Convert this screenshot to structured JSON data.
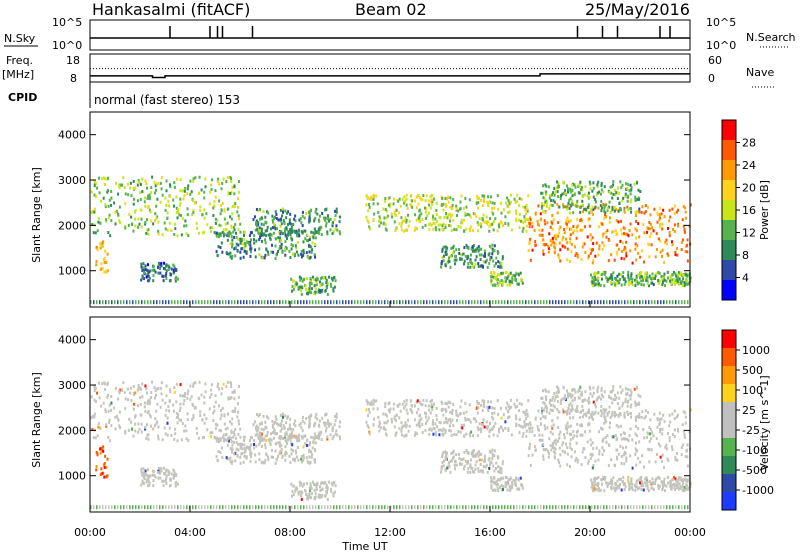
{
  "header": {
    "station": "Hankasalmi (fitACF)",
    "beam": "Beam 02",
    "date": "25/May/2016"
  },
  "top_panels": {
    "nsky_label": "N.Sky",
    "nsearch_label": "N.Search",
    "nsky_ticks": [
      "10^5",
      "10^0"
    ],
    "nsearch_ticks": [
      "10^5",
      "10^0"
    ],
    "freq_label_1": "Freq.",
    "freq_label_2": "[MHz]",
    "freq_ticks": [
      "18",
      "8"
    ],
    "nave_label": "Nave",
    "nave_ticks": [
      "60",
      "0"
    ],
    "cpid_label": "CPID",
    "cpid_text": "normal (fast stereo) 153"
  },
  "colors": {
    "power_scale": [
      "#0000ff",
      "#2d4aa8",
      "#2e8b57",
      "#55b24f",
      "#c8e619",
      "#ffd21e",
      "#ff9a00",
      "#ff5a00",
      "#ff0000"
    ],
    "velocity_scale": [
      "#ff0000",
      "#ff5a00",
      "#ff9a00",
      "#ffd21e",
      "#c0c0c0",
      "#c0c0c0",
      "#55b24f",
      "#2e8b57",
      "#2d4aa8",
      "#1e3cff"
    ],
    "gray_scatter": "#c4c4bc"
  },
  "chart_data": [
    {
      "type": "heatmap",
      "name": "power",
      "ylabel": "Slant Range [km]",
      "yticks": [
        "4000",
        "3000",
        "2000",
        "1000"
      ],
      "ylim": [
        200,
        4500
      ],
      "colorbar_label": "Power [dB]",
      "colorbar_ticks": [
        "28",
        "24",
        "20",
        "16",
        "12",
        "8",
        "4"
      ],
      "colorbar_range": [
        0,
        32
      ],
      "bands": [
        {
          "t": [
            0.0,
            6.0
          ],
          "r": [
            1800,
            3100
          ],
          "level": 14
        },
        {
          "t": [
            0.2,
            0.7
          ],
          "r": [
            1000,
            1700
          ],
          "level": 22
        },
        {
          "t": [
            2.0,
            3.5
          ],
          "r": [
            800,
            1200
          ],
          "level": 8
        },
        {
          "t": [
            5.0,
            9.0
          ],
          "r": [
            1300,
            1900
          ],
          "level": 10
        },
        {
          "t": [
            6.5,
            10.0
          ],
          "r": [
            1800,
            2400
          ],
          "level": 10
        },
        {
          "t": [
            8.0,
            9.8
          ],
          "r": [
            500,
            900
          ],
          "level": 12
        },
        {
          "t": [
            11.0,
            17.5
          ],
          "r": [
            1900,
            2700
          ],
          "level": 16
        },
        {
          "t": [
            14.0,
            16.5
          ],
          "r": [
            1100,
            1600
          ],
          "level": 10
        },
        {
          "t": [
            16.0,
            17.3
          ],
          "r": [
            700,
            1000
          ],
          "level": 14
        },
        {
          "t": [
            17.5,
            24.0
          ],
          "r": [
            1200,
            2500
          ],
          "level": 24
        },
        {
          "t": [
            18.0,
            22.0
          ],
          "r": [
            2300,
            3000
          ],
          "level": 12
        },
        {
          "t": [
            20.0,
            24.0
          ],
          "r": [
            700,
            1000
          ],
          "level": 12
        }
      ]
    },
    {
      "type": "heatmap",
      "name": "velocity",
      "ylabel": "Slant Range [km]",
      "yticks": [
        "4000",
        "3000",
        "2000",
        "1000"
      ],
      "ylim": [
        200,
        4500
      ],
      "colorbar_label": "Velocity [m s^-1]",
      "colorbar_ticks": [
        "1000",
        "500",
        "100",
        "25",
        "-25",
        "-100",
        "-500",
        "-1000"
      ],
      "xticks": [
        "00:00",
        "04:00",
        "08:00",
        "12:00",
        "16:00",
        "20:00",
        "00:00"
      ],
      "xlabel": "Time UT",
      "xlim": [
        0,
        24
      ]
    }
  ],
  "time_series": {
    "nsky_spike_hours": [
      3.2,
      4.8,
      5.1,
      5.3,
      6.5,
      19.5,
      20.5,
      21.1,
      22.8,
      23.2
    ],
    "freq_mhz": [
      [
        0,
        10.2
      ],
      [
        2.5,
        10.2
      ],
      [
        2.5,
        9.6
      ],
      [
        3.0,
        9.6
      ],
      [
        3.0,
        10.2
      ],
      [
        18.0,
        10.2
      ],
      [
        18.0,
        10.9
      ],
      [
        24,
        10.9
      ]
    ],
    "nave": [
      [
        0,
        20
      ],
      [
        24,
        20
      ]
    ]
  }
}
